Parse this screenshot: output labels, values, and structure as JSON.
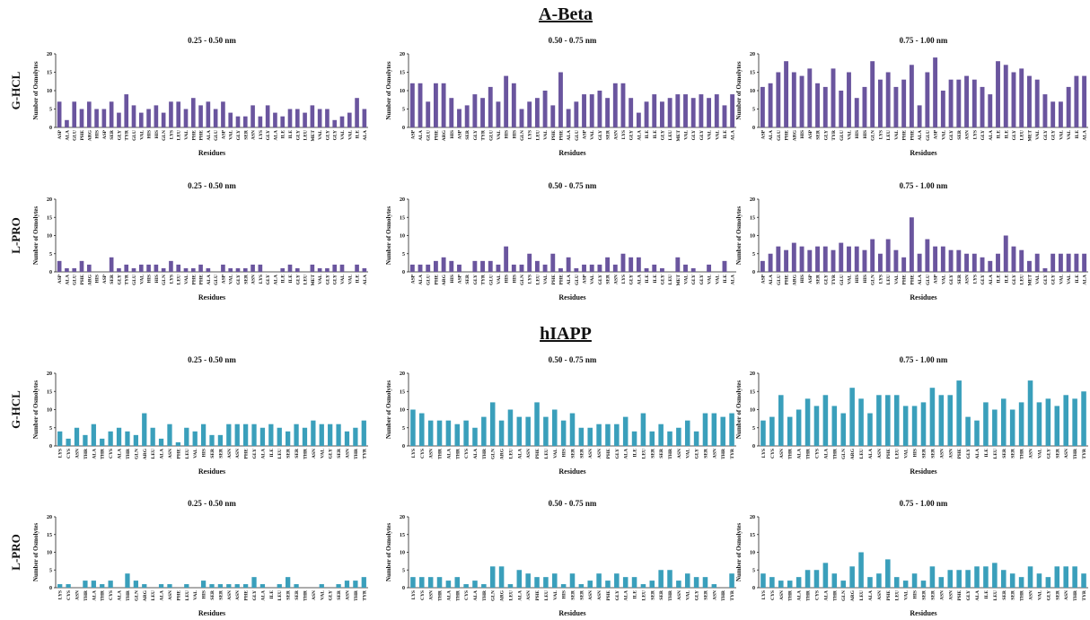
{
  "sections": [
    {
      "title": "A-Beta",
      "rows": [
        "G-HCL",
        "L-PRO"
      ]
    },
    {
      "title": "hIAPP",
      "rows": [
        "G-HCL",
        "L-PRO"
      ]
    }
  ],
  "chart_data": [
    {
      "type": "bar",
      "title": "0.25 - 0.50 nm",
      "x_label": "Residues",
      "y_label": "Number of Osmolytes",
      "color": "#6a559e",
      "ylim": [
        0,
        20
      ],
      "yticks": [
        0,
        5,
        10,
        15,
        20
      ],
      "categories": [
        "ASP",
        "ALA",
        "GLU",
        "PHE",
        "ARG",
        "HIS",
        "ASP",
        "SER",
        "GLY",
        "TYR",
        "GLU",
        "VAL",
        "HIS",
        "HIS",
        "GLN",
        "LYS",
        "LEU",
        "VAL",
        "PHE",
        "PHE",
        "ALA",
        "GLU",
        "ASP",
        "VAL",
        "GLY",
        "SER",
        "ASN",
        "LYS",
        "GLY",
        "ALA",
        "ILE",
        "ILE",
        "GLY",
        "LEU",
        "MET",
        "VAL",
        "GLY",
        "GLY",
        "VAL",
        "VAL",
        "ILE",
        "ALA"
      ],
      "values": [
        7,
        2,
        7,
        5,
        7,
        5,
        5,
        7,
        4,
        9,
        6,
        4,
        5,
        6,
        4,
        7,
        7,
        5,
        8,
        6,
        7,
        5,
        7,
        4,
        3,
        3,
        6,
        3,
        6,
        4,
        3,
        5,
        5,
        4,
        6,
        5,
        5,
        2,
        3,
        4,
        8,
        5
      ]
    },
    {
      "type": "bar",
      "title": "0.50 - 0.75 nm",
      "x_label": "Residues",
      "y_label": "Number of Osmolytes",
      "color": "#6a559e",
      "ylim": [
        0,
        20
      ],
      "yticks": [
        0,
        5,
        10,
        15,
        20
      ],
      "categories": [
        "ASP",
        "ALA",
        "GLU",
        "PHE",
        "ARG",
        "HIS",
        "ASP",
        "SER",
        "GLY",
        "TYR",
        "GLU",
        "VAL",
        "HIS",
        "HIS",
        "GLN",
        "LYS",
        "LEU",
        "VAL",
        "PHE",
        "PHE",
        "ALA",
        "GLU",
        "ASP",
        "VAL",
        "GLY",
        "SER",
        "ASN",
        "LYS",
        "GLY",
        "ALA",
        "ILE",
        "ILE",
        "GLY",
        "LEU",
        "MET",
        "VAL",
        "GLY",
        "GLY",
        "VAL",
        "VAL",
        "ILE",
        "ALA"
      ],
      "values": [
        12,
        12,
        7,
        12,
        12,
        8,
        5,
        6,
        9,
        8,
        11,
        7,
        14,
        12,
        5,
        7,
        8,
        10,
        6,
        15,
        5,
        7,
        9,
        9,
        10,
        8,
        12,
        12,
        8,
        4,
        7,
        9,
        7,
        8,
        9,
        9,
        8,
        9,
        8,
        9,
        6,
        9
      ]
    },
    {
      "type": "bar",
      "title": "0.75 - 1.00 nm",
      "x_label": "Residues",
      "y_label": "Number of Osmolytes",
      "color": "#6a559e",
      "ylim": [
        0,
        20
      ],
      "yticks": [
        0,
        5,
        10,
        15,
        20
      ],
      "categories": [
        "ASP",
        "ALA",
        "GLU",
        "PHE",
        "ARG",
        "HIS",
        "ASP",
        "SER",
        "GLY",
        "TYR",
        "GLU",
        "VAL",
        "HIS",
        "HIS",
        "GLN",
        "LYS",
        "LEU",
        "VAL",
        "PHE",
        "PHE",
        "ALA",
        "GLU",
        "ASP",
        "VAL",
        "GLY",
        "SER",
        "ASN",
        "LYS",
        "GLY",
        "ALA",
        "ILE",
        "ILE",
        "GLY",
        "LEU",
        "MET",
        "VAL",
        "GLY",
        "GLY",
        "VAL",
        "VAL",
        "ILE",
        "ALA"
      ],
      "values": [
        11,
        12,
        15,
        18,
        15,
        14,
        16,
        12,
        11,
        16,
        10,
        15,
        8,
        11,
        18,
        13,
        15,
        11,
        13,
        17,
        6,
        15,
        19,
        10,
        13,
        13,
        14,
        13,
        11,
        9,
        18,
        17,
        15,
        16,
        14,
        13,
        9,
        7,
        7,
        11,
        14,
        14
      ]
    },
    {
      "type": "bar",
      "title": "0.25 - 0.50 nm",
      "x_label": "Residues",
      "y_label": "Number of Osmolytes",
      "color": "#6a559e",
      "ylim": [
        0,
        20
      ],
      "yticks": [
        0,
        5,
        10,
        15,
        20
      ],
      "categories": [
        "ASP",
        "ALA",
        "GLU",
        "PHE",
        "ARG",
        "HIS",
        "ASP",
        "SER",
        "GLY",
        "TYR",
        "GLU",
        "VAL",
        "HIS",
        "HIS",
        "GLN",
        "LYS",
        "LEU",
        "VAL",
        "PHE",
        "PHE",
        "ALA",
        "GLU",
        "ASP",
        "VAL",
        "GLY",
        "SER",
        "ASN",
        "LYS",
        "GLY",
        "ALA",
        "ILE",
        "ILE",
        "GLY",
        "LEU",
        "MET",
        "VAL",
        "GLY",
        "GLY",
        "VAL",
        "VAL",
        "ILE",
        "ALA"
      ],
      "values": [
        3,
        1,
        1,
        3,
        2,
        0,
        0,
        4,
        1,
        2,
        1,
        2,
        2,
        2,
        1,
        3,
        2,
        1,
        1,
        2,
        1,
        0,
        2,
        1,
        1,
        1,
        2,
        2,
        0,
        0,
        1,
        2,
        1,
        0,
        2,
        1,
        1,
        2,
        2,
        0,
        2,
        1
      ]
    },
    {
      "type": "bar",
      "title": "0.50 - 0.75 nm",
      "x_label": "Residues",
      "y_label": "Number of Osmolytes",
      "color": "#6a559e",
      "ylim": [
        0,
        20
      ],
      "yticks": [
        0,
        5,
        10,
        15,
        20
      ],
      "categories": [
        "ASP",
        "ALA",
        "GLU",
        "PHE",
        "ARG",
        "HIS",
        "ASP",
        "SER",
        "GLY",
        "TYR",
        "GLU",
        "VAL",
        "HIS",
        "HIS",
        "GLN",
        "LYS",
        "LEU",
        "VAL",
        "PHE",
        "PHE",
        "ALA",
        "GLU",
        "ASP",
        "VAL",
        "GLY",
        "SER",
        "ASN",
        "LYS",
        "GLY",
        "ALA",
        "ILE",
        "ILE",
        "GLY",
        "LEU",
        "MET",
        "VAL",
        "GLY",
        "GLY",
        "VAL",
        "VAL",
        "ILE",
        "ALA"
      ],
      "values": [
        2,
        2,
        2,
        3,
        4,
        3,
        2,
        0,
        3,
        3,
        3,
        2,
        7,
        2,
        2,
        5,
        3,
        2,
        5,
        1,
        4,
        1,
        2,
        2,
        2,
        4,
        2,
        5,
        4,
        4,
        1,
        2,
        1,
        0,
        4,
        2,
        1,
        0,
        2,
        0,
        3,
        0
      ]
    },
    {
      "type": "bar",
      "title": "0.75 - 1.00 nm",
      "x_label": "Residues",
      "y_label": "Number of Osmolytes",
      "color": "#6a559e",
      "ylim": [
        0,
        20
      ],
      "yticks": [
        0,
        5,
        10,
        15,
        20
      ],
      "categories": [
        "ASP",
        "ALA",
        "GLU",
        "PHE",
        "ARG",
        "HIS",
        "ASP",
        "SER",
        "GLY",
        "TYR",
        "GLU",
        "VAL",
        "HIS",
        "HIS",
        "GLN",
        "LYS",
        "LEU",
        "VAL",
        "PHE",
        "PHE",
        "ALA",
        "GLU",
        "ASP",
        "VAL",
        "GLY",
        "SER",
        "ASN",
        "LYS",
        "GLY",
        "ALA",
        "ILE",
        "ILE",
        "GLY",
        "LEU",
        "MET",
        "VAL",
        "GLY",
        "GLY",
        "VAL",
        "VAL",
        "ILE",
        "ALA"
      ],
      "values": [
        3,
        5,
        7,
        6,
        8,
        7,
        6,
        7,
        7,
        6,
        8,
        7,
        7,
        6,
        9,
        5,
        9,
        6,
        4,
        15,
        5,
        9,
        7,
        7,
        6,
        6,
        5,
        5,
        4,
        3,
        5,
        10,
        7,
        6,
        3,
        5,
        1,
        5,
        5,
        5,
        5,
        5
      ]
    },
    {
      "type": "bar",
      "title": "0.25 - 0.50 nm",
      "x_label": "Residues",
      "y_label": "Number of Osmolytes",
      "color": "#3a9fbb",
      "ylim": [
        0,
        20
      ],
      "yticks": [
        0,
        5,
        10,
        15,
        20
      ],
      "categories": [
        "LYS",
        "CYS",
        "ASN",
        "THR",
        "ALA",
        "THR",
        "CYS",
        "ALA",
        "THR",
        "GLN",
        "ARG",
        "LEU",
        "ALA",
        "ASN",
        "PHE",
        "LEU",
        "VAL",
        "HIS",
        "SER",
        "SER",
        "ASN",
        "ASN",
        "PHE",
        "GLY",
        "ALA",
        "ILE",
        "LEU",
        "SER",
        "SER",
        "THR",
        "ASN",
        "VAL",
        "GLY",
        "SER",
        "ASN",
        "THR",
        "TYR"
      ],
      "values": [
        4,
        2,
        5,
        3,
        6,
        2,
        4,
        5,
        4,
        3,
        9,
        5,
        2,
        6,
        1,
        5,
        4,
        6,
        3,
        3,
        6,
        6,
        6,
        6,
        5,
        6,
        5,
        4,
        6,
        5,
        7,
        6,
        6,
        6,
        4,
        5,
        7
      ]
    },
    {
      "type": "bar",
      "title": "0.50 - 0.75 nm",
      "x_label": "Residues",
      "y_label": "Number of Osmolytes",
      "color": "#3a9fbb",
      "ylim": [
        0,
        20
      ],
      "yticks": [
        0,
        5,
        10,
        15,
        20
      ],
      "categories": [
        "LYS",
        "CYS",
        "ASN",
        "THR",
        "ALA",
        "THR",
        "CYS",
        "ALA",
        "THR",
        "GLN",
        "ARG",
        "LEU",
        "ALA",
        "ASN",
        "PHE",
        "LEU",
        "VAL",
        "HIS",
        "SER",
        "SER",
        "ASN",
        "ASN",
        "PHE",
        "GLY",
        "ALA",
        "ILE",
        "LEU",
        "SER",
        "SER",
        "THR",
        "ASN",
        "VAL",
        "GLY",
        "SER",
        "ASN",
        "THR",
        "TYR"
      ],
      "values": [
        10,
        9,
        7,
        7,
        7,
        6,
        7,
        5,
        8,
        12,
        7,
        10,
        8,
        8,
        12,
        8,
        10,
        7,
        9,
        5,
        5,
        6,
        6,
        6,
        8,
        4,
        9,
        4,
        6,
        4,
        5,
        7,
        4,
        9,
        9,
        8,
        9
      ]
    },
    {
      "type": "bar",
      "title": "0.75 - 1.00 nm",
      "x_label": "Residues",
      "y_label": "Number of Osmolytes",
      "color": "#3a9fbb",
      "ylim": [
        0,
        20
      ],
      "yticks": [
        0,
        5,
        10,
        15,
        20
      ],
      "categories": [
        "LYS",
        "CYS",
        "ASN",
        "THR",
        "ALA",
        "THR",
        "CYS",
        "ALA",
        "THR",
        "GLN",
        "ARG",
        "LEU",
        "ALA",
        "ASN",
        "PHE",
        "LEU",
        "VAL",
        "HIS",
        "SER",
        "SER",
        "ASN",
        "ASN",
        "PHE",
        "GLY",
        "ALA",
        "ILE",
        "LEU",
        "SER",
        "SER",
        "THR",
        "ASN",
        "VAL",
        "GLY",
        "SER",
        "ASN",
        "THR",
        "TYR"
      ],
      "values": [
        7,
        8,
        14,
        8,
        10,
        13,
        11,
        14,
        11,
        9,
        16,
        13,
        9,
        14,
        14,
        14,
        11,
        11,
        12,
        16,
        14,
        14,
        18,
        8,
        7,
        12,
        10,
        13,
        10,
        12,
        18,
        12,
        13,
        11,
        14,
        13,
        15
      ]
    },
    {
      "type": "bar",
      "title": "0.25 - 0.50 nm",
      "x_label": "Residues",
      "y_label": "Number of Osmolytes",
      "color": "#3a9fbb",
      "ylim": [
        0,
        20
      ],
      "yticks": [
        0,
        5,
        10,
        15,
        20
      ],
      "categories": [
        "LYS",
        "CYS",
        "ASN",
        "THR",
        "ALA",
        "THR",
        "CYS",
        "ALA",
        "THR",
        "GLN",
        "ARG",
        "LEU",
        "ALA",
        "ASN",
        "PHE",
        "LEU",
        "VAL",
        "HIS",
        "SER",
        "SER",
        "ASN",
        "ASN",
        "PHE",
        "GLY",
        "ALA",
        "ILE",
        "LEU",
        "SER",
        "SER",
        "THR",
        "ASN",
        "VAL",
        "GLY",
        "SER",
        "ASN",
        "THR",
        "TYR"
      ],
      "values": [
        1,
        1,
        0,
        2,
        2,
        1,
        2,
        0,
        4,
        2,
        1,
        0,
        1,
        1,
        0,
        1,
        0,
        2,
        1,
        1,
        1,
        1,
        1,
        3,
        1,
        0,
        1,
        3,
        1,
        0,
        0,
        1,
        0,
        1,
        2,
        2,
        3
      ]
    },
    {
      "type": "bar",
      "title": "0.50 - 0.75 nm",
      "x_label": "Residues",
      "y_label": "Number of Osmolytes",
      "color": "#3a9fbb",
      "ylim": [
        0,
        20
      ],
      "yticks": [
        0,
        5,
        10,
        15,
        20
      ],
      "categories": [
        "LYS",
        "CYS",
        "ASN",
        "THR",
        "ALA",
        "THR",
        "CYS",
        "ALA",
        "THR",
        "GLN",
        "ARG",
        "LEU",
        "ALA",
        "ASN",
        "PHE",
        "LEU",
        "VAL",
        "HIS",
        "SER",
        "SER",
        "ASN",
        "ASN",
        "PHE",
        "GLY",
        "ALA",
        "ILE",
        "LEU",
        "SER",
        "SER",
        "THR",
        "ASN",
        "VAL",
        "GLY",
        "SER",
        "ASN",
        "THR",
        "TYR"
      ],
      "values": [
        3,
        3,
        3,
        3,
        2,
        3,
        1,
        2,
        1,
        6,
        6,
        1,
        5,
        4,
        3,
        3,
        4,
        1,
        4,
        1,
        2,
        4,
        2,
        4,
        3,
        3,
        1,
        2,
        5,
        5,
        2,
        4,
        3,
        3,
        1,
        0,
        4
      ]
    },
    {
      "type": "bar",
      "title": "0.75 - 1.00 nm",
      "x_label": "Residues",
      "y_label": "Number of Osmolytes",
      "color": "#3a9fbb",
      "ylim": [
        0,
        20
      ],
      "yticks": [
        0,
        5,
        10,
        15,
        20
      ],
      "categories": [
        "LYS",
        "CYS",
        "ASN",
        "THR",
        "ALA",
        "THR",
        "CYS",
        "ALA",
        "THR",
        "GLN",
        "ARG",
        "LEU",
        "ALA",
        "ASN",
        "PHE",
        "LEU",
        "VAL",
        "HIS",
        "SER",
        "SER",
        "ASN",
        "ASN",
        "PHE",
        "GLY",
        "ALA",
        "ILE",
        "LEU",
        "SER",
        "SER",
        "THR",
        "ASN",
        "VAL",
        "GLY",
        "SER",
        "ASN",
        "THR",
        "TYR"
      ],
      "values": [
        4,
        3,
        2,
        2,
        3,
        5,
        5,
        7,
        4,
        2,
        6,
        10,
        3,
        4,
        8,
        3,
        2,
        4,
        2,
        6,
        3,
        5,
        5,
        5,
        6,
        6,
        7,
        5,
        4,
        3,
        6,
        4,
        3,
        6,
        6,
        6,
        4
      ]
    }
  ]
}
